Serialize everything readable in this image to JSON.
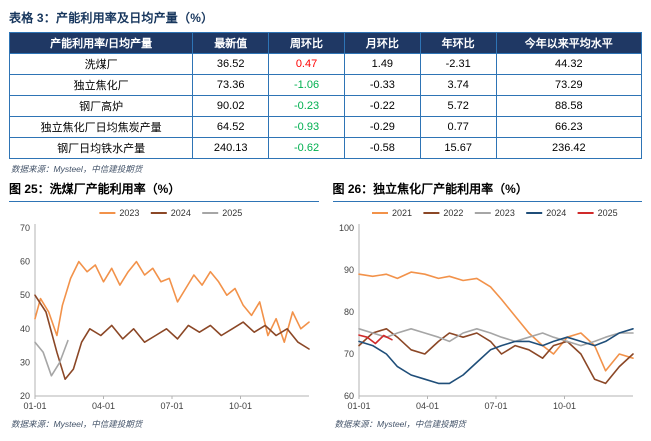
{
  "page": {
    "table_caption": "表格 3：产能利用率及日均产量（%）"
  },
  "table": {
    "headers": [
      "产能利用率/日均产量",
      "最新值",
      "周环比",
      "月环比",
      "年环比",
      "今年以来平均水平"
    ],
    "rows": [
      {
        "name": "洗煤厂",
        "latest": "36.52",
        "wow": "0.47",
        "wow_color": "#FF0000",
        "mom": "1.49",
        "yoy": "-2.31",
        "avg": "44.32"
      },
      {
        "name": "独立焦化厂",
        "latest": "73.36",
        "wow": "-1.06",
        "wow_color": "#00B050",
        "mom": "-0.33",
        "yoy": "3.74",
        "avg": "73.29"
      },
      {
        "name": "钢厂高炉",
        "latest": "90.02",
        "wow": "-0.23",
        "wow_color": "#00B050",
        "mom": "-0.22",
        "yoy": "5.72",
        "avg": "88.58"
      },
      {
        "name": "独立焦化厂日均焦炭产量",
        "latest": "64.52",
        "wow": "-0.93",
        "wow_color": "#00B050",
        "mom": "-0.29",
        "yoy": "0.77",
        "avg": "66.23"
      },
      {
        "name": "钢厂日均铁水产量",
        "latest": "240.13",
        "wow": "-0.62",
        "wow_color": "#00B050",
        "mom": "-0.58",
        "yoy": "15.67",
        "avg": "236.42"
      }
    ],
    "source": "数据来源：Mysteel，中信建投期货"
  },
  "colors": {
    "header_bg": "#1F3864",
    "table_border": "#2E74B5",
    "positive": "#FF0000",
    "negative": "#00B050"
  },
  "chart_data": [
    {
      "type": "line",
      "title": "图 25：洗煤厂产能利用率（%）",
      "source": "数据来源：Mysteel，中信建投期货",
      "ylim": [
        20,
        70
      ],
      "yticks": [
        20,
        30,
        40,
        50,
        60,
        70
      ],
      "xticks": [
        "01-01",
        "04-01",
        "07-01",
        "10-01"
      ],
      "xtick_pos": [
        0,
        0.25,
        0.5,
        0.75
      ],
      "grid": false,
      "legend_position": "top",
      "series": [
        {
          "name": "2023",
          "color": "#F2924A",
          "x": [
            0,
            0.02,
            0.05,
            0.08,
            0.1,
            0.13,
            0.16,
            0.19,
            0.22,
            0.25,
            0.28,
            0.31,
            0.34,
            0.37,
            0.4,
            0.43,
            0.46,
            0.49,
            0.52,
            0.55,
            0.58,
            0.61,
            0.64,
            0.67,
            0.7,
            0.73,
            0.76,
            0.79,
            0.82,
            0.85,
            0.88,
            0.91,
            0.94,
            0.97,
            1.0
          ],
          "y": [
            43,
            49,
            45,
            38,
            47,
            55,
            60,
            57,
            59,
            54,
            58,
            53,
            57,
            60,
            56,
            58,
            54,
            55,
            48,
            52,
            56,
            53,
            57,
            54,
            50,
            52,
            47,
            44,
            48,
            38,
            43,
            36,
            45,
            40,
            42
          ]
        },
        {
          "name": "2024",
          "color": "#8B4726",
          "x": [
            0,
            0.04,
            0.08,
            0.11,
            0.14,
            0.17,
            0.2,
            0.24,
            0.28,
            0.32,
            0.36,
            0.4,
            0.44,
            0.48,
            0.52,
            0.56,
            0.6,
            0.64,
            0.68,
            0.72,
            0.76,
            0.8,
            0.84,
            0.88,
            0.92,
            0.96,
            1.0
          ],
          "y": [
            50,
            45,
            33,
            25,
            28,
            36,
            40,
            38,
            41,
            37,
            40,
            36,
            38,
            40,
            37,
            41,
            39,
            41,
            38,
            40,
            42,
            39,
            41,
            38,
            40,
            36,
            34
          ]
        },
        {
          "name": "2025",
          "color": "#A6A6A6",
          "x": [
            0,
            0.03,
            0.06,
            0.09,
            0.12
          ],
          "y": [
            36,
            33,
            26,
            30,
            36.5
          ]
        }
      ]
    },
    {
      "type": "line",
      "title": "图 26：独立焦化厂产能利用率（%）",
      "source": "数据来源：Mysteel，中信建投期货",
      "ylim": [
        60,
        100
      ],
      "yticks": [
        60,
        70,
        80,
        90,
        100
      ],
      "xticks": [
        "01-01",
        "04-01",
        "07-01",
        "10-01"
      ],
      "xtick_pos": [
        0,
        0.25,
        0.5,
        0.75
      ],
      "grid": false,
      "legend_position": "top",
      "series": [
        {
          "name": "2021",
          "color": "#F2924A",
          "x": [
            0,
            0.05,
            0.1,
            0.14,
            0.19,
            0.24,
            0.29,
            0.33,
            0.38,
            0.43,
            0.48,
            0.52,
            0.57,
            0.62,
            0.67,
            0.71,
            0.76,
            0.81,
            0.86,
            0.9,
            0.95,
            1.0
          ],
          "y": [
            89,
            88.5,
            89,
            88,
            89.5,
            89,
            88,
            88.5,
            87.5,
            88,
            86,
            83,
            79,
            75,
            72,
            70,
            74,
            75,
            72,
            66,
            70,
            69
          ]
        },
        {
          "name": "2022",
          "color": "#8B4726",
          "x": [
            0,
            0.05,
            0.1,
            0.14,
            0.19,
            0.24,
            0.29,
            0.33,
            0.38,
            0.43,
            0.48,
            0.52,
            0.57,
            0.62,
            0.67,
            0.71,
            0.76,
            0.81,
            0.86,
            0.9,
            0.95,
            1.0
          ],
          "y": [
            72,
            75,
            76,
            74,
            71,
            70,
            73,
            75,
            74,
            75,
            73,
            70,
            72,
            71,
            69,
            72,
            73,
            70,
            64,
            63,
            67,
            70
          ]
        },
        {
          "name": "2023",
          "color": "#A6A6A6",
          "x": [
            0,
            0.05,
            0.1,
            0.14,
            0.19,
            0.24,
            0.29,
            0.33,
            0.38,
            0.43,
            0.48,
            0.52,
            0.57,
            0.62,
            0.67,
            0.71,
            0.76,
            0.81,
            0.86,
            0.9,
            0.95,
            1.0
          ],
          "y": [
            76,
            75,
            74,
            75,
            76,
            75,
            74,
            73,
            75,
            76,
            75,
            74,
            73,
            74,
            75,
            74,
            73,
            72,
            73,
            74,
            75,
            75
          ]
        },
        {
          "name": "2024",
          "color": "#1F4E79",
          "x": [
            0,
            0.05,
            0.1,
            0.14,
            0.19,
            0.24,
            0.29,
            0.33,
            0.38,
            0.43,
            0.48,
            0.52,
            0.57,
            0.62,
            0.67,
            0.71,
            0.76,
            0.81,
            0.86,
            0.9,
            0.95,
            1.0
          ],
          "y": [
            73,
            72,
            70,
            67,
            65,
            64,
            63,
            63,
            65,
            68,
            71,
            72,
            73,
            73,
            72,
            73,
            74,
            73,
            72,
            73,
            75,
            76
          ]
        },
        {
          "name": "2025",
          "color": "#D02A2A",
          "x": [
            0,
            0.03,
            0.06,
            0.09,
            0.12
          ],
          "y": [
            74.5,
            74,
            72.5,
            74.4,
            73.4
          ]
        }
      ]
    }
  ]
}
